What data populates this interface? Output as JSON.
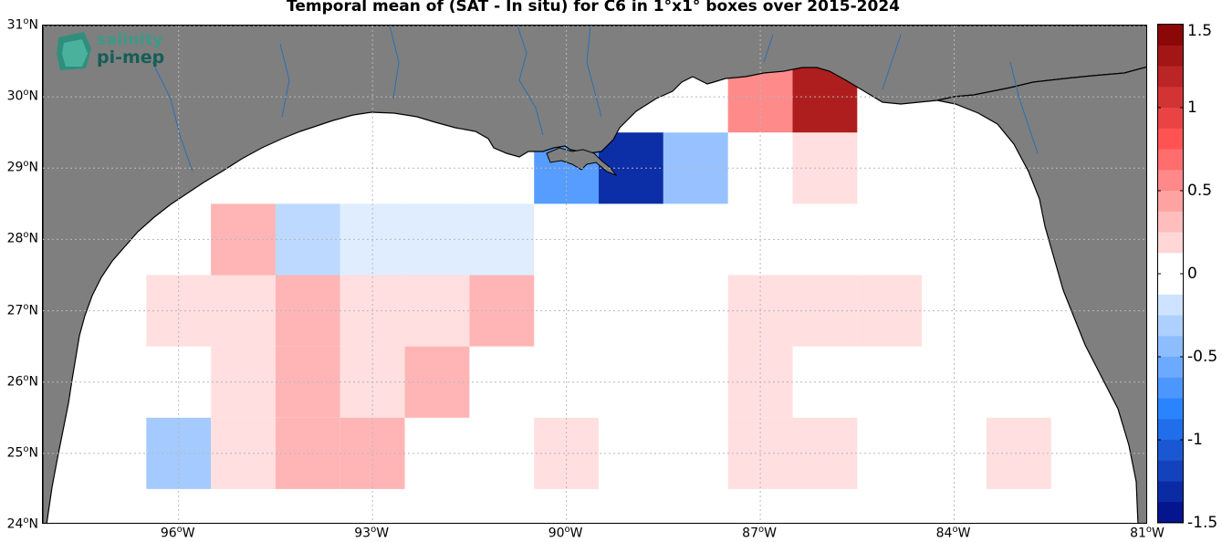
{
  "title": "Temporal mean of (SAT - In situ) for C6 in 1°x1° boxes over 2015-2024",
  "logo": {
    "line1": "salinity",
    "line2": "pi-mep"
  },
  "colors": {
    "land": "#7f7f7f",
    "coast": "#000000",
    "river": "#2b6fb4",
    "grid": "#b8b8b8"
  },
  "chart_data": {
    "type": "heatmap",
    "title": "Temporal mean of (SAT - In situ) for C6 in 1°x1° boxes over 2015-2024",
    "xlabel": "",
    "ylabel": "",
    "xlim_deg_lon": [
      -98.1,
      -81.0
    ],
    "ylim_deg_lat": [
      24,
      31
    ],
    "clim": [
      -1.5,
      1.5
    ],
    "colormap": "blue-white-red (diverging)",
    "x_ticks": [
      {
        "value": -96,
        "label": "96",
        "unit": "W"
      },
      {
        "value": -93,
        "label": "93",
        "unit": "W"
      },
      {
        "value": -90,
        "label": "90",
        "unit": "W"
      },
      {
        "value": -87,
        "label": "87",
        "unit": "W"
      },
      {
        "value": -84,
        "label": "84",
        "unit": "W"
      },
      {
        "value": -81,
        "label": "81",
        "unit": "W"
      }
    ],
    "y_ticks": [
      {
        "value": 24,
        "label": "24",
        "unit": "N"
      },
      {
        "value": 25,
        "label": "25",
        "unit": "N"
      },
      {
        "value": 26,
        "label": "26",
        "unit": "N"
      },
      {
        "value": 27,
        "label": "27",
        "unit": "N"
      },
      {
        "value": 28,
        "label": "28",
        "unit": "N"
      },
      {
        "value": 29,
        "label": "29",
        "unit": "N"
      },
      {
        "value": 30,
        "label": "30",
        "unit": "N"
      },
      {
        "value": 31,
        "label": "31",
        "unit": "N"
      }
    ],
    "colorbar_ticks": [
      {
        "value": 1.5,
        "label": "1.5"
      },
      {
        "value": 1.0,
        "label": "1"
      },
      {
        "value": 0.5,
        "label": "0.5"
      },
      {
        "value": 0.0,
        "label": "0"
      },
      {
        "value": -0.5,
        "label": "-0.5"
      },
      {
        "value": -1.0,
        "label": "-1"
      },
      {
        "value": -1.5,
        "label": "-1.5"
      }
    ],
    "box_centers_lon_lat_value": [
      {
        "lon": -95,
        "lat": 28,
        "value": 0.35
      },
      {
        "lon": -94,
        "lat": 28,
        "value": -0.25
      },
      {
        "lon": -93,
        "lat": 28,
        "value": -0.12
      },
      {
        "lon": -92,
        "lat": 28,
        "value": -0.12
      },
      {
        "lon": -91,
        "lat": 28,
        "value": -0.12
      },
      {
        "lon": -96,
        "lat": 27,
        "value": 0.15
      },
      {
        "lon": -95,
        "lat": 27,
        "value": 0.15
      },
      {
        "lon": -94,
        "lat": 27,
        "value": 0.35
      },
      {
        "lon": -93,
        "lat": 27,
        "value": 0.15
      },
      {
        "lon": -92,
        "lat": 27,
        "value": 0.15
      },
      {
        "lon": -91,
        "lat": 27,
        "value": 0.35
      },
      {
        "lon": -87,
        "lat": 27,
        "value": 0.15
      },
      {
        "lon": -86,
        "lat": 27,
        "value": 0.15
      },
      {
        "lon": -85,
        "lat": 27,
        "value": 0.15
      },
      {
        "lon": -95,
        "lat": 26,
        "value": 0.15
      },
      {
        "lon": -94,
        "lat": 26,
        "value": 0.35
      },
      {
        "lon": -93,
        "lat": 26,
        "value": 0.15
      },
      {
        "lon": -92,
        "lat": 26,
        "value": 0.35
      },
      {
        "lon": -87,
        "lat": 26,
        "value": 0.15
      },
      {
        "lon": -96,
        "lat": 25,
        "value": -0.35
      },
      {
        "lon": -95,
        "lat": 25,
        "value": 0.15
      },
      {
        "lon": -94,
        "lat": 25,
        "value": 0.35
      },
      {
        "lon": -93,
        "lat": 25,
        "value": 0.35
      },
      {
        "lon": -90,
        "lat": 25,
        "value": 0.15
      },
      {
        "lon": -87,
        "lat": 25,
        "value": 0.15
      },
      {
        "lon": -86,
        "lat": 25,
        "value": 0.15
      },
      {
        "lon": -83,
        "lat": 25,
        "value": 0.15
      },
      {
        "lon": -90,
        "lat": 29,
        "value": -0.65
      },
      {
        "lon": -89,
        "lat": 29,
        "value": -1.3
      },
      {
        "lon": -88,
        "lat": 29,
        "value": -0.4
      },
      {
        "lon": -86,
        "lat": 29,
        "value": 0.15
      },
      {
        "lon": -87,
        "lat": 30,
        "value": 0.55
      },
      {
        "lon": -86,
        "lat": 30,
        "value": 1.25
      }
    ]
  }
}
